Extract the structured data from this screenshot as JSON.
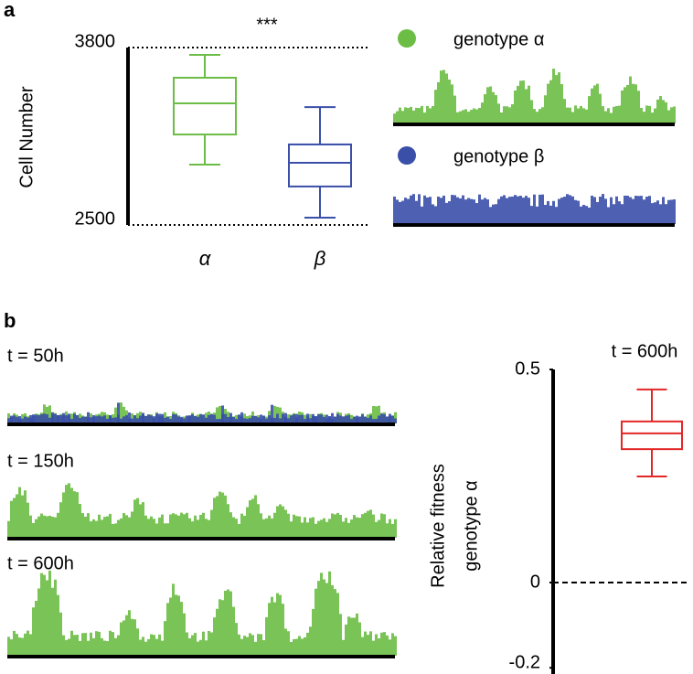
{
  "chart_data": [
    {
      "type": "box",
      "panel": "a",
      "ylabel": "Cell Number",
      "annotation": "***",
      "categories": [
        "α",
        "β"
      ],
      "series": [
        {
          "name": "genotype α",
          "color": "#6cbd45",
          "min": 2942,
          "q1": 3163,
          "median": 3391,
          "q3": 3579,
          "max": 3746
        },
        {
          "name": "genotype β",
          "color": "#3a4fa8",
          "min": 2554,
          "q1": 2782,
          "median": 2956,
          "q3": 3090,
          "max": 3364
        }
      ],
      "ylim": [
        2500,
        3800
      ],
      "yticks": [
        2500,
        3800
      ],
      "grid": true
    },
    {
      "type": "box",
      "panel": "b",
      "title": "t = 600h",
      "ylabel": [
        "Relative fitness",
        "genotype α"
      ],
      "annotations": [
        "t = 50h",
        "t = 150h",
        "t = 600h"
      ],
      "categories": [
        null
      ],
      "series": [
        {
          "color": "#e32626",
          "min": 0.249,
          "q1": 0.313,
          "median": 0.35,
          "q3": 0.378,
          "max": 0.453
        }
      ],
      "ylim": [
        -0.2,
        0.5
      ],
      "yticks": [
        -0.2,
        0,
        0.5
      ],
      "hline": 0
    }
  ]
}
